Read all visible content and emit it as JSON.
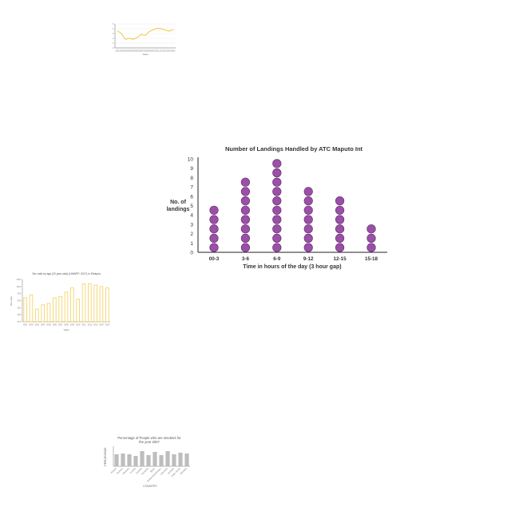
{
  "colors": {
    "dot_fill": "#9b4fa8",
    "dot_stroke": "#5e2a66",
    "line_yellow": "#f2cf5b",
    "bar_yellow": "#f2cf5b",
    "bar_gray": "#bdbdbd",
    "axis": "#222222",
    "grid": "#e6e6e6"
  },
  "chart_data": [
    {
      "type": "line",
      "title": "",
      "xlabel": "Years",
      "ylabel": "",
      "x": [
        2001,
        2002,
        2003,
        2004,
        2005,
        2006,
        2007,
        2008,
        2009,
        2010,
        2011,
        2012,
        2013,
        2014,
        2015
      ],
      "series": [
        {
          "values": [
            3.6,
            3.0,
            1.8,
            2.0,
            1.8,
            2.2,
            2.8,
            2.6,
            3.4,
            3.8,
            4.1,
            4.0,
            3.7,
            3.5,
            3.8
          ]
        }
      ],
      "ylim": [
        0,
        5
      ],
      "grid": true
    },
    {
      "type": "scatter",
      "title": "Number of Landings Handled by ATC Maputo Int",
      "xlabel": "Time in hours of the day (3 hour gap)",
      "ylabel": "No. of landings",
      "categories": [
        "00-3",
        "3-6",
        "6-9",
        "9-12",
        "12-15",
        "15-18"
      ],
      "values": [
        5,
        8,
        10,
        7,
        6,
        3
      ],
      "yticks": [
        "0",
        "1",
        "2",
        "3",
        "4",
        "5",
        "6",
        "7",
        "8",
        "9",
        "10"
      ],
      "ylim": [
        0,
        10
      ],
      "grid": false
    },
    {
      "type": "bar",
      "title": "Sex ratio by age (20 year olds) (UNWPP, 2017) in Ethiopia",
      "xlabel": "Years",
      "ylabel": "Sex ratio",
      "categories": [
        "2001",
        "2002",
        "2003",
        "2004",
        "2005",
        "2006",
        "2007",
        "2008",
        "2009",
        "2010",
        "2011",
        "2012",
        "2013",
        "2014",
        "2015"
      ],
      "values": [
        99.2,
        99.4,
        98.4,
        98.7,
        98.8,
        99.2,
        99.3,
        99.6,
        99.9,
        99.1,
        100.2,
        100.2,
        100.1,
        100.0,
        99.9
      ],
      "ylim": [
        97.5,
        100.5
      ],
      "grid": false
    },
    {
      "type": "bar",
      "title": "Percentage of People who are smokers for the year 2007",
      "xlabel": "COUNTRY",
      "ylabel": "PERCENTAGE",
      "categories": [
        "Poland",
        "Burkina",
        "Rwanda",
        "Croatia",
        "Gambia",
        "Romania",
        "Spain",
        "Serbia Montenegro",
        "Lithuania",
        "Georgia",
        "Cape Verde",
        "Slovakia"
      ],
      "values": [
        15,
        16,
        15,
        13,
        19,
        14,
        18,
        14,
        19,
        15,
        17,
        16
      ],
      "ylim": [
        0,
        25
      ],
      "grid": false
    }
  ]
}
